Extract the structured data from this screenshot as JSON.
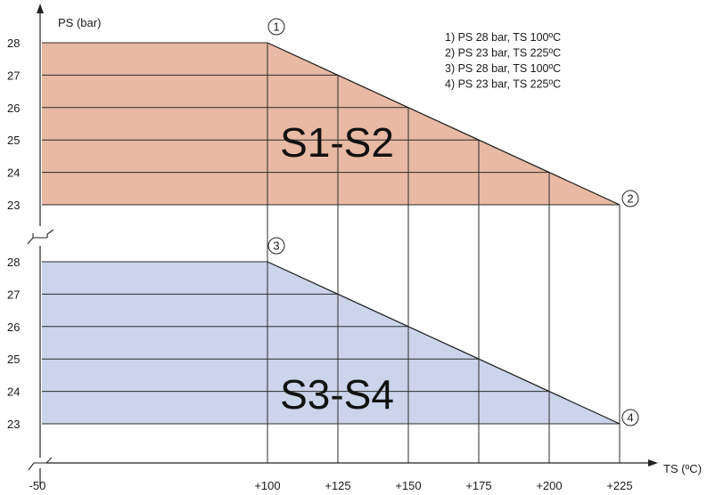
{
  "chart_data": {
    "type": "area",
    "ylabel": "PS (bar)",
    "xlabel": "TS (ºC)",
    "x_ticks": [
      {
        "value": -50,
        "label": "-50"
      },
      {
        "value": 100,
        "label": "+100"
      },
      {
        "value": 125,
        "label": "+125"
      },
      {
        "value": 150,
        "label": "+150"
      },
      {
        "value": 175,
        "label": "+175"
      },
      {
        "value": 200,
        "label": "+200"
      },
      {
        "value": 225,
        "label": "+225"
      }
    ],
    "panels": [
      {
        "label": "S1-S2",
        "fill": "#e8b9a3",
        "y_ticks": [
          "28",
          "27",
          "26",
          "25",
          "24",
          "23"
        ],
        "ylim": [
          23,
          28
        ],
        "points": [
          {
            "ts": -50,
            "ps": 28
          },
          {
            "ts": 100,
            "ps": 28
          },
          {
            "ts": 225,
            "ps": 23
          }
        ],
        "markers": [
          {
            "num": "1",
            "ts": 100,
            "ps": 28
          },
          {
            "num": "2",
            "ts": 225,
            "ps": 23
          }
        ]
      },
      {
        "label": "S3-S4",
        "fill": "#cbd4eb",
        "y_ticks": [
          "28",
          "27",
          "26",
          "25",
          "24",
          "23"
        ],
        "ylim": [
          23,
          28
        ],
        "points": [
          {
            "ts": -50,
            "ps": 28
          },
          {
            "ts": 100,
            "ps": 28
          },
          {
            "ts": 225,
            "ps": 23
          }
        ],
        "markers": [
          {
            "num": "3",
            "ts": 100,
            "ps": 28
          },
          {
            "num": "4",
            "ts": 225,
            "ps": 23
          }
        ]
      }
    ],
    "legend": [
      "1) PS 28 bar, TS 100ºC",
      "2) PS 23 bar, TS 225ºC",
      "3) PS 28 bar, TS 100ºC",
      "4) PS 23 bar, TS 225ºC"
    ],
    "legend_position": "top-right",
    "grid": true
  }
}
